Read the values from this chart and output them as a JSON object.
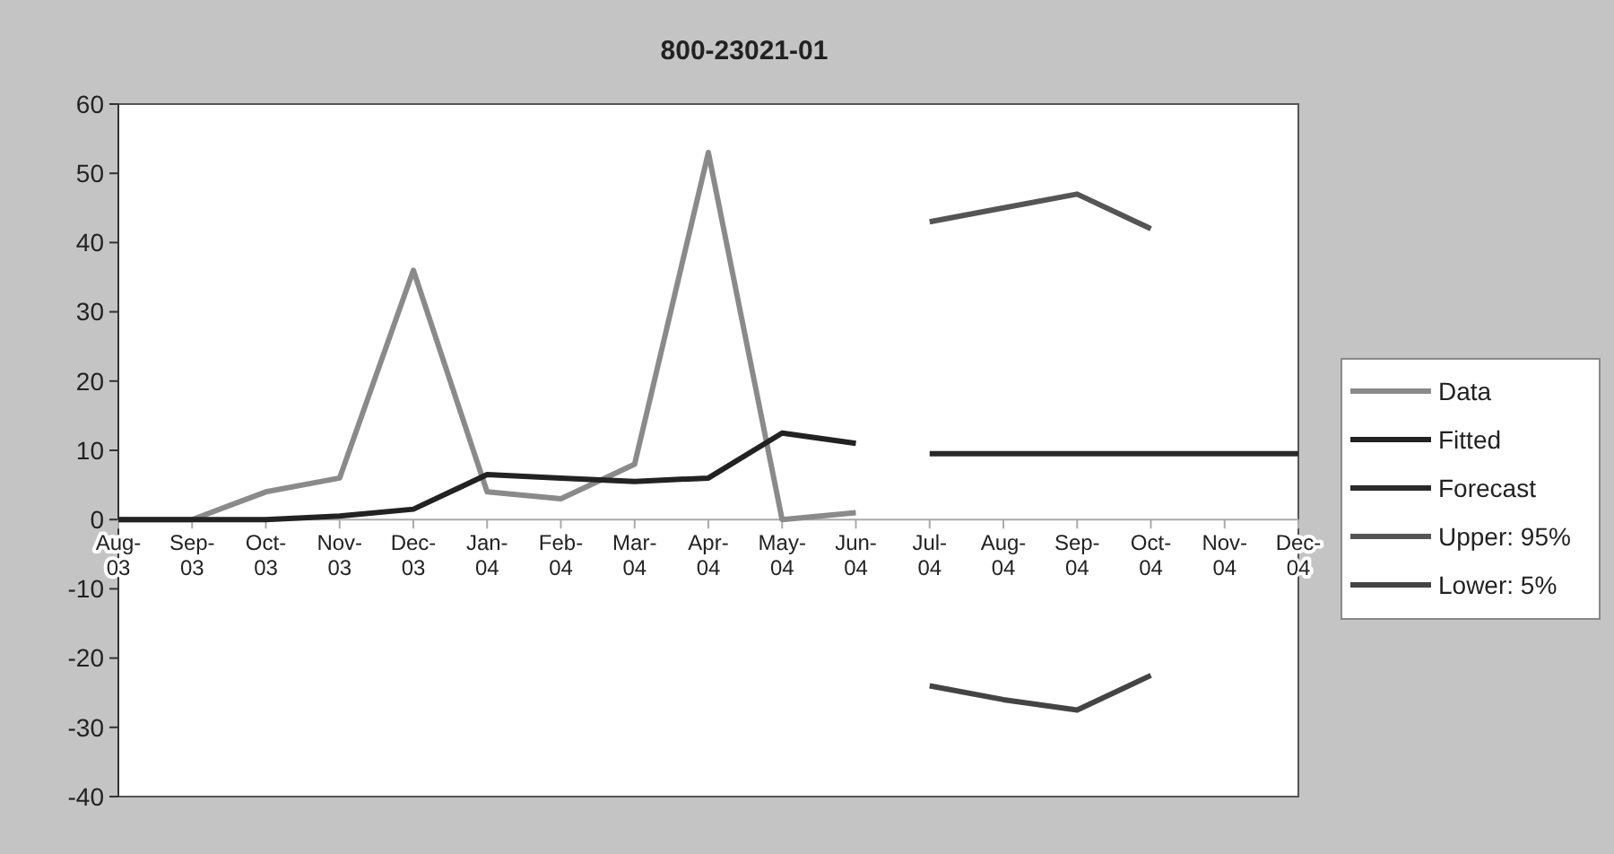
{
  "chart_data": {
    "type": "line",
    "title": "800-23021-01",
    "categories": [
      "Aug-03",
      "Sep-03",
      "Oct-03",
      "Nov-03",
      "Dec-03",
      "Jan-04",
      "Feb-04",
      "Mar-04",
      "Apr-04",
      "May-04",
      "Jun-04",
      "Jul-04",
      "Aug-04",
      "Sep-04",
      "Oct-04",
      "Nov-04",
      "Dec-04"
    ],
    "series": [
      {
        "name": "Data",
        "color": "#8a8a8a",
        "values": [
          0,
          0,
          4,
          6,
          36,
          4,
          3,
          8,
          53,
          0,
          1,
          null,
          null,
          null,
          null,
          null,
          null
        ]
      },
      {
        "name": "Fitted",
        "color": "#222222",
        "values": [
          0,
          0,
          0,
          0.5,
          1.5,
          6.5,
          6,
          5.5,
          6,
          12.5,
          11,
          null,
          null,
          null,
          null,
          null,
          null
        ]
      },
      {
        "name": "Forecast",
        "color": "#2a2a2a",
        "values": [
          null,
          null,
          null,
          null,
          null,
          null,
          null,
          null,
          null,
          null,
          null,
          9.5,
          9.5,
          9.5,
          9.5,
          9.5,
          9.5
        ]
      },
      {
        "name": "Upper: 95%",
        "color": "#555555",
        "values": [
          null,
          null,
          null,
          null,
          null,
          null,
          null,
          null,
          null,
          null,
          null,
          43,
          45,
          47,
          42,
          null,
          null
        ]
      },
      {
        "name": "Lower: 5%",
        "color": "#444444",
        "values": [
          null,
          null,
          null,
          null,
          null,
          null,
          null,
          null,
          null,
          null,
          null,
          -24,
          -26,
          -27.5,
          -22.5,
          null,
          null
        ]
      }
    ],
    "ylim": [
      -40,
      60
    ],
    "yticks": [
      -40,
      -30,
      -20,
      -10,
      0,
      10,
      20,
      30,
      40,
      50,
      60
    ],
    "legend": "right",
    "marker": "none",
    "line_style": "solid"
  }
}
